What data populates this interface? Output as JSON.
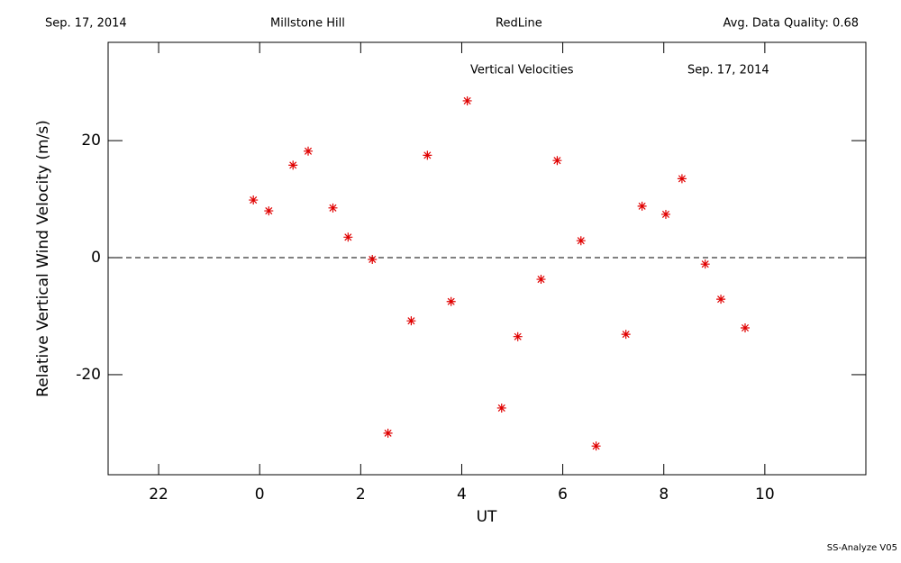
{
  "header": {
    "date": "Sep. 17, 2014",
    "site": "Millstone Hill",
    "filter": "RedLine",
    "quality": "Avg. Data Quality: 0.68"
  },
  "footer": "SS-Analyze V05",
  "chart_data": {
    "type": "scatter",
    "title": "Vertical Velocities",
    "annotation": "Sep. 17, 2014",
    "x_label": "UT",
    "y_label": "Relative Vertical Wind Velocity (m/s)",
    "xlim": [
      -3,
      12
    ],
    "ylim": [
      -37.1,
      36.8
    ],
    "xticks": [
      {
        "value": -2,
        "label": "22"
      },
      0,
      2,
      4,
      6,
      8,
      10
    ],
    "yticks": [
      -20,
      0,
      20
    ],
    "reference_line": 0,
    "color": "#e00000",
    "marker": "asterisk",
    "x": [
      -0.125,
      0.18,
      0.66,
      0.96,
      1.45,
      1.75,
      2.23,
      2.54,
      3.0,
      3.32,
      3.79,
      4.11,
      4.79,
      5.11,
      5.57,
      5.89,
      6.36,
      6.66,
      7.25,
      7.57,
      8.04,
      8.36,
      8.82,
      9.13,
      9.61
    ],
    "values": [
      9.85,
      8.0,
      15.8,
      18.2,
      8.5,
      3.5,
      -0.3,
      -30.0,
      -10.8,
      17.5,
      -7.5,
      26.8,
      -25.7,
      -13.5,
      -3.7,
      16.6,
      2.9,
      -32.2,
      -13.1,
      8.8,
      7.4,
      13.5,
      -1.1,
      -7.1,
      -12.0
    ]
  }
}
